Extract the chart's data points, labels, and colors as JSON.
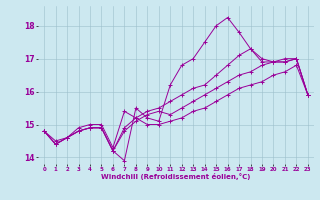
{
  "xlabel": "Windchill (Refroidissement éolien,°C)",
  "bg_color": "#cce8f0",
  "line_color": "#990099",
  "xlim": [
    -0.5,
    23.5
  ],
  "ylim": [
    13.8,
    18.6
  ],
  "yticks": [
    14,
    15,
    16,
    17,
    18
  ],
  "xticks": [
    0,
    1,
    2,
    3,
    4,
    5,
    6,
    7,
    8,
    9,
    10,
    11,
    12,
    13,
    14,
    15,
    16,
    17,
    18,
    19,
    20,
    21,
    22,
    23
  ],
  "lines": [
    [
      14.8,
      14.4,
      14.6,
      14.8,
      14.9,
      14.9,
      14.2,
      13.9,
      15.5,
      15.2,
      15.1,
      16.2,
      16.8,
      17.0,
      17.5,
      18.0,
      18.25,
      17.8,
      17.3,
      17.0,
      16.9,
      16.9,
      17.0,
      15.9
    ],
    [
      14.8,
      14.4,
      14.6,
      14.8,
      14.9,
      14.9,
      14.2,
      14.8,
      15.1,
      15.3,
      15.4,
      15.3,
      15.5,
      15.7,
      15.9,
      16.1,
      16.3,
      16.5,
      16.6,
      16.8,
      16.9,
      17.0,
      17.0,
      15.9
    ],
    [
      14.8,
      14.5,
      14.6,
      14.8,
      14.9,
      14.9,
      14.2,
      14.9,
      15.2,
      15.4,
      15.5,
      15.7,
      15.9,
      16.1,
      16.2,
      16.5,
      16.8,
      17.1,
      17.3,
      16.9,
      16.9,
      16.9,
      17.0,
      15.9
    ],
    [
      14.8,
      14.4,
      14.6,
      14.9,
      15.0,
      15.0,
      14.3,
      15.4,
      15.2,
      15.0,
      15.0,
      15.1,
      15.2,
      15.4,
      15.5,
      15.7,
      15.9,
      16.1,
      16.2,
      16.3,
      16.5,
      16.6,
      16.8,
      15.9
    ]
  ]
}
